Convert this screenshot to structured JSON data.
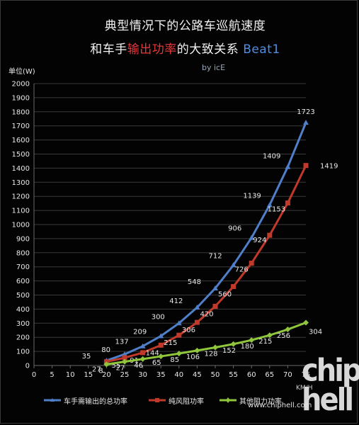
{
  "title_line1": "典型情况下的公路车巡航速度",
  "title_line2_prefix": "和车手",
  "title_line2_highlight": "输出功率",
  "title_line2_middle": "的大致关系 ",
  "title_line2_model": "Beat1",
  "byline": "by icE",
  "watermark": "chip hell",
  "watermark_url": "www.chiphell.com",
  "colors": {
    "background": "#030303",
    "series_total": "#4f7fc8",
    "series_wind": "#c0392b",
    "series_other": "#8fc63b",
    "grid": "#3a3a3a",
    "text": "#e8e8e8"
  },
  "chart_data": {
    "type": "line",
    "ylabel": "单位(W)",
    "xlabel": "KM/H",
    "x": [
      20,
      25,
      30,
      35,
      40,
      45,
      50,
      55,
      60,
      65,
      70,
      75
    ],
    "xticks": [
      0,
      5,
      10,
      15,
      20,
      25,
      30,
      35,
      40,
      45,
      50,
      55,
      60,
      65,
      70,
      75
    ],
    "xlim": [
      0,
      75
    ],
    "ylim": [
      0,
      2000
    ],
    "ytick_step": 100,
    "grid": "horizontal",
    "legend_position": "bottom",
    "series": [
      {
        "name": "车手需输出的总功率",
        "values": [
          35,
          80,
          137,
          209,
          300,
          412,
          548,
          712,
          906,
          1139,
          1409,
          1723
        ],
        "labels_shown": [
          "35",
          "80",
          "137",
          "209",
          "300",
          "412",
          "548",
          "712",
          "906",
          "1139",
          "1409",
          "1723"
        ]
      },
      {
        "name": "纯风阻功率",
        "values": [
          27,
          55,
          91,
          144,
          215,
          306,
          420,
          560,
          726,
          924,
          1153,
          1419
        ],
        "labels_shown": [
          "27",
          "55",
          "91",
          "144",
          "215",
          "306",
          "420",
          "560",
          "726",
          "924",
          "1153",
          "1419"
        ]
      },
      {
        "name": "其他阻力功率",
        "values": [
          8,
          27,
          46,
          65,
          85,
          106,
          128,
          152,
          180,
          215,
          256,
          304
        ],
        "labels_shown": [
          "8",
          "27",
          "46",
          "65",
          "85",
          "106",
          "128",
          "152",
          "180",
          "215",
          "256",
          "304"
        ]
      }
    ]
  }
}
